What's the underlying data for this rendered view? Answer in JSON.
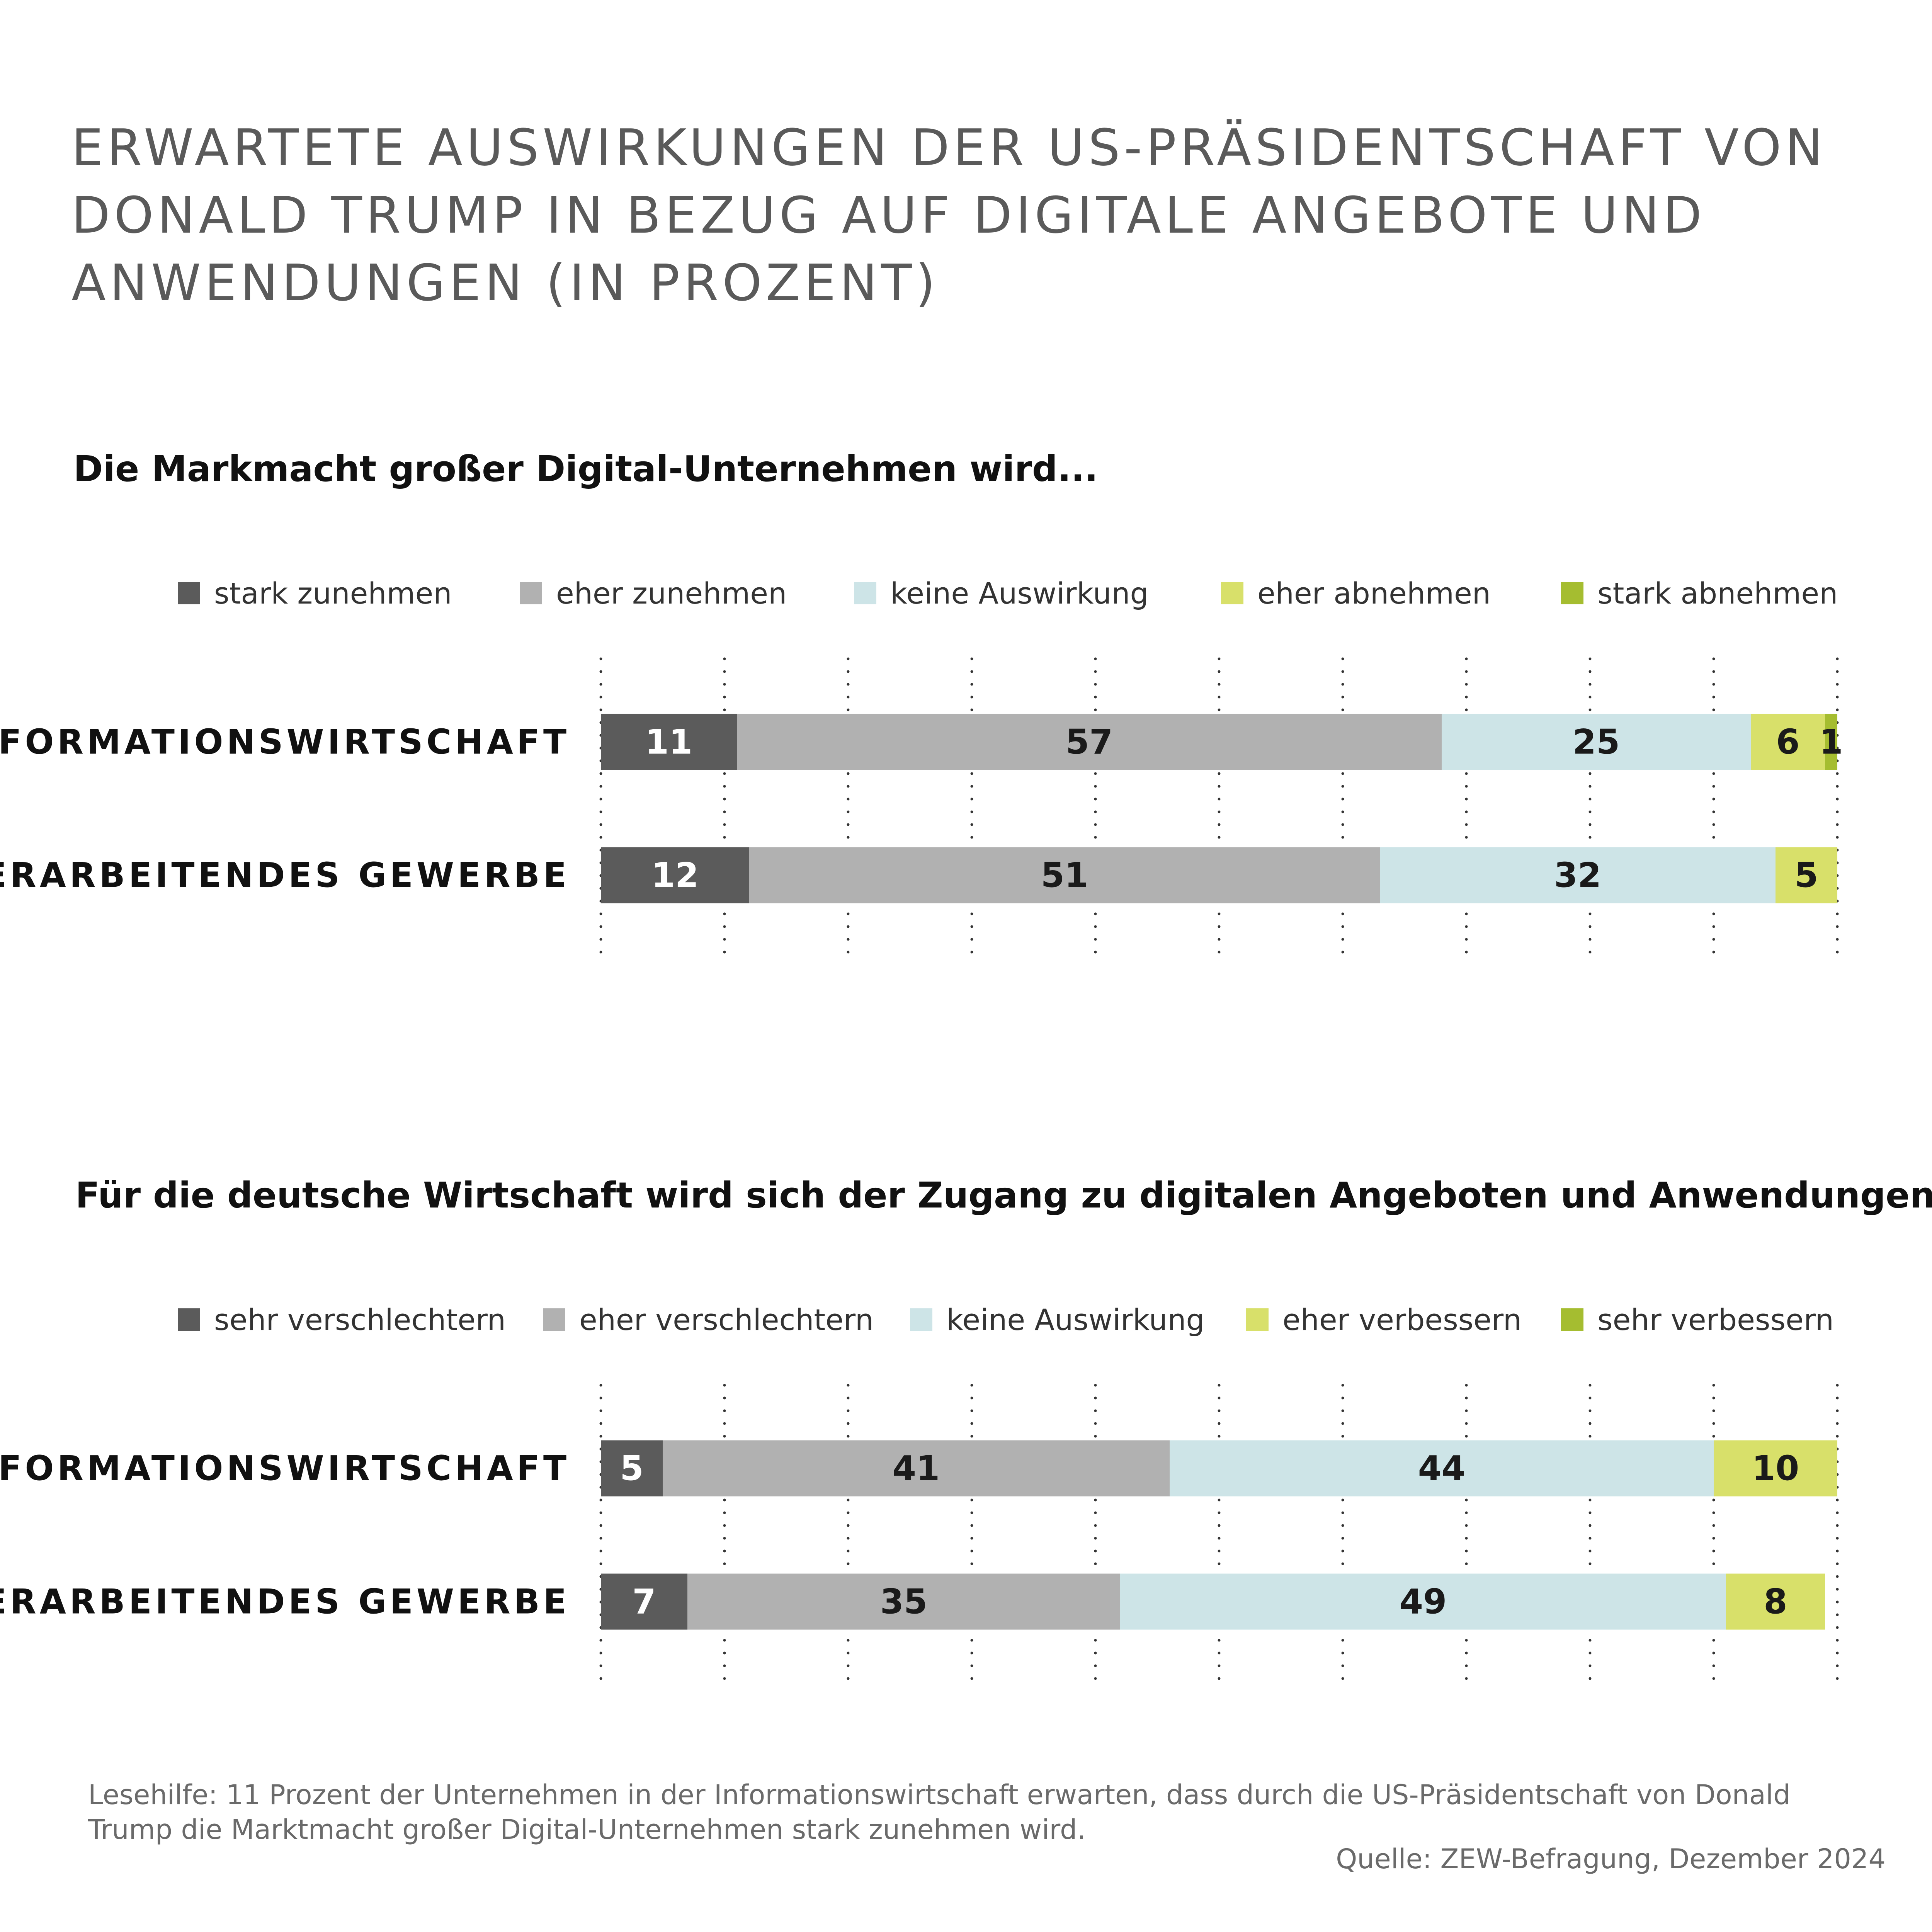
{
  "title": "ERWARTETE AUSWIRKUNGEN DER US-PRÄSIDENTSCHAFT VON DONALD TRUMP IN BEZUG AUF DIGITALE ANGEBOTE UND ANWENDUNGEN (IN PROZENT)",
  "title_lines": [
    "ERWARTETE AUSWIRKUNGEN DER US-PRÄSIDENTSCHAFT VON",
    "DONALD TRUMP IN BEZUG AUF DIGITALE ANGEBOTE UND",
    "ANWENDUNGEN (IN PROZENT)"
  ],
  "footnote": "Lesehilfe: 11 Prozent der Unternehmen in der Informationswirtschaft erwarten, dass durch die US-Präsidentschaft von Donald Trump die Marktmacht großer Digital-Unternehmen stark zunehmen wird.",
  "source": "Quelle: ZEW-Befragung, Dezember 2024",
  "colors": {
    "dark_gray": "#5b5b5b",
    "light_gray": "#b1b1b1",
    "light_blue": "#cde4e7",
    "light_green": "#d8e06a",
    "dark_green": "#a5bd30"
  },
  "chart_data": [
    {
      "type": "bar",
      "orientation": "horizontal",
      "stacked": true,
      "title": "Die Markmacht großer Digital-Unternehmen wird...",
      "categories": [
        "INFORMATIONSWIRTSCHAFT",
        "VERARBEITENDES GEWERBE"
      ],
      "series": [
        {
          "name": "stark zunehmen",
          "color": "#5b5b5b",
          "values": [
            11,
            12
          ]
        },
        {
          "name": "eher zunehmen",
          "color": "#b1b1b1",
          "values": [
            57,
            51
          ]
        },
        {
          "name": "keine Auswirkung",
          "color": "#cde4e7",
          "values": [
            25,
            32
          ]
        },
        {
          "name": "eher abnehmen",
          "color": "#d8e06a",
          "values": [
            6,
            5
          ]
        },
        {
          "name": "stark abnehmen",
          "color": "#a5bd30",
          "values": [
            1,
            null
          ]
        }
      ],
      "xlim": [
        0,
        100
      ],
      "grid": "dotted vertical",
      "legend": "top"
    },
    {
      "type": "bar",
      "orientation": "horizontal",
      "stacked": true,
      "title": "Für die deutsche Wirtschaft wird sich der Zugang zu digitalen Angeboten und Anwendungen...",
      "categories": [
        "INFORMATIONSWIRTSCHAFT",
        "VERARBEITENDES GEWERBE"
      ],
      "series": [
        {
          "name": "sehr verschlechtern",
          "color": "#5b5b5b",
          "values": [
            5,
            7
          ]
        },
        {
          "name": "eher verschlechtern",
          "color": "#b1b1b1",
          "values": [
            41,
            35
          ]
        },
        {
          "name": "keine Auswirkung",
          "color": "#cde4e7",
          "values": [
            44,
            49
          ]
        },
        {
          "name": "eher verbessern",
          "color": "#d8e06a",
          "values": [
            10,
            8
          ]
        },
        {
          "name": "sehr verbessern",
          "color": "#a5bd30",
          "values": [
            null,
            null
          ]
        }
      ],
      "xlim": [
        0,
        100
      ],
      "grid": "dotted vertical",
      "legend": "top"
    }
  ]
}
